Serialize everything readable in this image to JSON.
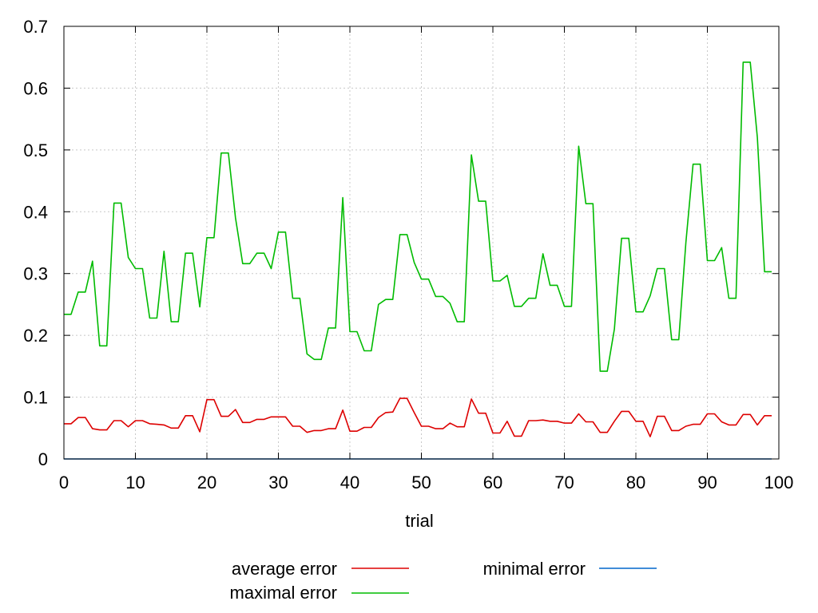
{
  "chart_data": {
    "type": "line",
    "title": "",
    "xlabel": "trial",
    "ylabel": "",
    "xlim": [
      0,
      100
    ],
    "ylim": [
      0,
      0.7
    ],
    "grid": true,
    "legend_position": "bottom",
    "x_ticks": [
      "0",
      "10",
      "20",
      "30",
      "40",
      "50",
      "60",
      "70",
      "80",
      "90",
      "100"
    ],
    "y_ticks": [
      "0",
      "0.1",
      "0.2",
      "0.3",
      "0.4",
      "0.5",
      "0.6",
      "0.7"
    ],
    "x_tick_values": [
      0,
      10,
      20,
      30,
      40,
      50,
      60,
      70,
      80,
      90,
      100
    ],
    "y_tick_values": [
      0,
      0.1,
      0.2,
      0.3,
      0.4,
      0.5,
      0.6,
      0.7
    ],
    "x": [
      0,
      1,
      2,
      3,
      4,
      5,
      6,
      7,
      8,
      9,
      10,
      11,
      12,
      13,
      14,
      15,
      16,
      17,
      18,
      19,
      20,
      21,
      22,
      23,
      24,
      25,
      26,
      27,
      28,
      29,
      30,
      31,
      32,
      33,
      34,
      35,
      36,
      37,
      38,
      39,
      40,
      41,
      42,
      43,
      44,
      45,
      46,
      47,
      48,
      49,
      50,
      51,
      52,
      53,
      54,
      55,
      56,
      57,
      58,
      59,
      60,
      61,
      62,
      63,
      64,
      65,
      66,
      67,
      68,
      69,
      70,
      71,
      72,
      73,
      74,
      75,
      76,
      77,
      78,
      79,
      80,
      81,
      82,
      83,
      84,
      85,
      86,
      87,
      88,
      89,
      90,
      91,
      92,
      93,
      94,
      95,
      96,
      97,
      98,
      99
    ],
    "series": [
      {
        "name": "average error",
        "color": "#dd0000",
        "values": [
          0.057,
          0.057,
          0.067,
          0.067,
          0.049,
          0.047,
          0.047,
          0.062,
          0.062,
          0.052,
          0.062,
          0.062,
          0.057,
          0.056,
          0.055,
          0.05,
          0.05,
          0.07,
          0.07,
          0.044,
          0.096,
          0.096,
          0.069,
          0.069,
          0.08,
          0.059,
          0.059,
          0.064,
          0.064,
          0.068,
          0.068,
          0.068,
          0.053,
          0.053,
          0.043,
          0.046,
          0.046,
          0.049,
          0.049,
          0.079,
          0.045,
          0.045,
          0.051,
          0.051,
          0.067,
          0.075,
          0.076,
          0.098,
          0.098,
          0.075,
          0.053,
          0.053,
          0.049,
          0.049,
          0.058,
          0.052,
          0.052,
          0.097,
          0.074,
          0.074,
          0.042,
          0.042,
          0.061,
          0.037,
          0.037,
          0.062,
          0.062,
          0.063,
          0.061,
          0.061,
          0.058,
          0.058,
          0.073,
          0.06,
          0.06,
          0.043,
          0.043,
          0.061,
          0.077,
          0.077,
          0.061,
          0.061,
          0.036,
          0.069,
          0.069,
          0.046,
          0.046,
          0.053,
          0.056,
          0.056,
          0.073,
          0.073,
          0.06,
          0.055,
          0.055,
          0.072,
          0.072,
          0.055,
          0.07,
          0.07
        ]
      },
      {
        "name": "maximal error",
        "color": "#00bb00",
        "values": [
          0.234,
          0.234,
          0.27,
          0.27,
          0.32,
          0.183,
          0.183,
          0.414,
          0.414,
          0.326,
          0.308,
          0.308,
          0.228,
          0.228,
          0.336,
          0.222,
          0.222,
          0.333,
          0.333,
          0.246,
          0.358,
          0.358,
          0.495,
          0.495,
          0.39,
          0.316,
          0.316,
          0.333,
          0.333,
          0.308,
          0.367,
          0.367,
          0.26,
          0.26,
          0.17,
          0.161,
          0.161,
          0.212,
          0.212,
          0.423,
          0.206,
          0.206,
          0.175,
          0.175,
          0.25,
          0.258,
          0.258,
          0.363,
          0.363,
          0.318,
          0.291,
          0.291,
          0.263,
          0.263,
          0.252,
          0.222,
          0.222,
          0.492,
          0.417,
          0.417,
          0.288,
          0.288,
          0.297,
          0.247,
          0.247,
          0.26,
          0.26,
          0.332,
          0.281,
          0.281,
          0.247,
          0.247,
          0.506,
          0.413,
          0.413,
          0.142,
          0.142,
          0.21,
          0.357,
          0.357,
          0.238,
          0.238,
          0.264,
          0.308,
          0.308,
          0.193,
          0.193,
          0.35,
          0.477,
          0.477,
          0.321,
          0.321,
          0.342,
          0.26,
          0.26,
          0.642,
          0.642,
          0.52,
          0.303,
          0.303
        ]
      },
      {
        "name": "minimal error",
        "color": "#0066cc",
        "values": [
          0,
          0,
          0,
          0,
          0,
          0,
          0,
          0,
          0,
          0,
          0,
          0,
          0,
          0,
          0,
          0,
          0,
          0,
          0,
          0,
          0,
          0,
          0,
          0,
          0,
          0,
          0,
          0,
          0,
          0,
          0,
          0,
          0,
          0,
          0,
          0,
          0,
          0,
          0,
          0,
          0,
          0,
          0,
          0,
          0,
          0,
          0,
          0,
          0,
          0,
          0,
          0,
          0,
          0,
          0,
          0,
          0,
          0,
          0,
          0,
          0,
          0,
          0,
          0,
          0,
          0,
          0,
          0,
          0,
          0,
          0,
          0,
          0,
          0,
          0,
          0,
          0,
          0,
          0,
          0,
          0,
          0,
          0,
          0,
          0,
          0,
          0,
          0,
          0,
          0,
          0,
          0,
          0,
          0,
          0,
          0,
          0,
          0,
          0,
          0
        ]
      }
    ]
  }
}
